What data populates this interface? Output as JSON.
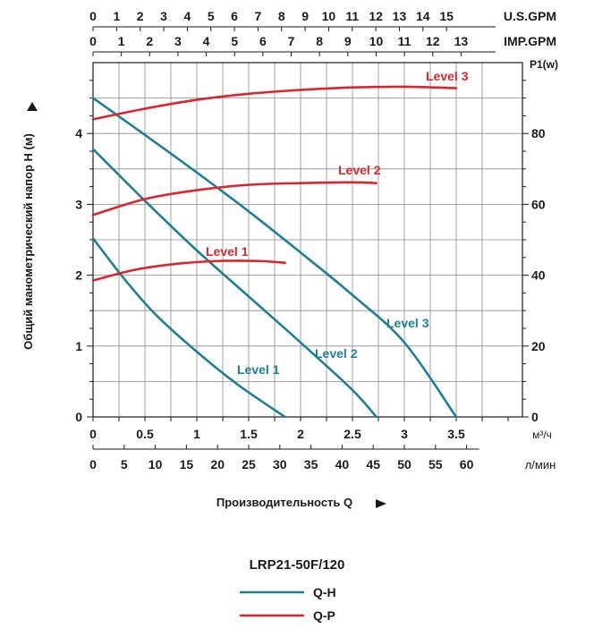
{
  "chart_data": {
    "type": "line",
    "title": "LRP21-50F/120",
    "ylabel": "Общий манометрический напор H (м)",
    "y2label": "P1(w)",
    "xlabel": "Производительность Q",
    "ylim": [
      0,
      5
    ],
    "y2lim": [
      0,
      100
    ],
    "xlim_m3h": [
      0,
      4
    ],
    "grid": true,
    "y_ticks": [
      "0",
      "1",
      "2",
      "3",
      "4"
    ],
    "y2_ticks": [
      "0",
      "20",
      "40",
      "60",
      "80"
    ],
    "x_axes": {
      "usgpm": {
        "label": "U.S.GPM",
        "ticks": [
          "0",
          "1",
          "2",
          "3",
          "4",
          "5",
          "6",
          "7",
          "8",
          "9",
          "10",
          "11",
          "12",
          "13",
          "14",
          "15"
        ]
      },
      "impgpm": {
        "label": "IMP.GPM",
        "ticks": [
          "0",
          "1",
          "2",
          "3",
          "4",
          "5",
          "6",
          "7",
          "8",
          "9",
          "10",
          "11",
          "12",
          "13"
        ]
      },
      "m3h": {
        "label": "м³/ч",
        "ticks": [
          "0",
          "0.5",
          "1",
          "1.5",
          "2",
          "2.5",
          "3",
          "3.5"
        ]
      },
      "lmin": {
        "label": "л/мин",
        "ticks": [
          "0",
          "5",
          "10",
          "15",
          "20",
          "25",
          "30",
          "35",
          "40",
          "45",
          "50",
          "55",
          "60"
        ]
      }
    },
    "qh_series": [
      {
        "name": "Level 1",
        "x": [
          0,
          0.3,
          0.6,
          1.0,
          1.4,
          1.85
        ],
        "y": [
          2.52,
          1.95,
          1.45,
          0.92,
          0.45,
          0.0
        ]
      },
      {
        "name": "Level 2",
        "x": [
          0,
          0.5,
          1.0,
          1.5,
          2.0,
          2.5,
          2.73
        ],
        "y": [
          3.78,
          3.05,
          2.35,
          1.7,
          1.05,
          0.38,
          0.0
        ]
      },
      {
        "name": "Level 3",
        "x": [
          0,
          0.5,
          1.0,
          1.5,
          2.0,
          2.5,
          3.0,
          3.5
        ],
        "y": [
          4.5,
          3.98,
          3.45,
          2.9,
          2.32,
          1.72,
          1.05,
          0.0
        ]
      }
    ],
    "qp_series": [
      {
        "name": "Level 1",
        "x": [
          0,
          0.4,
          0.8,
          1.2,
          1.6,
          1.85
        ],
        "y": [
          38.5,
          41.5,
          43.2,
          44.0,
          44.0,
          43.5
        ]
      },
      {
        "name": "Level 2",
        "x": [
          0,
          0.5,
          1.0,
          1.5,
          2.0,
          2.5,
          2.73
        ],
        "y": [
          57.0,
          61.5,
          64.0,
          65.5,
          66.0,
          66.2,
          66.0
        ]
      },
      {
        "name": "Level 3",
        "x": [
          0,
          0.5,
          1.0,
          1.5,
          2.0,
          2.5,
          3.0,
          3.5
        ],
        "y": [
          84.0,
          87.0,
          89.5,
          91.2,
          92.3,
          93.0,
          93.2,
          92.8
        ]
      }
    ],
    "legend": [
      {
        "name": "Q-H",
        "color": "#1e7f93"
      },
      {
        "name": "Q-P",
        "color": "#d9262e"
      }
    ]
  },
  "colors": {
    "qh": "#1e7f93",
    "qp": "#d9262e",
    "axis": "#1a1a1a",
    "grid": "#8c8c8c"
  }
}
